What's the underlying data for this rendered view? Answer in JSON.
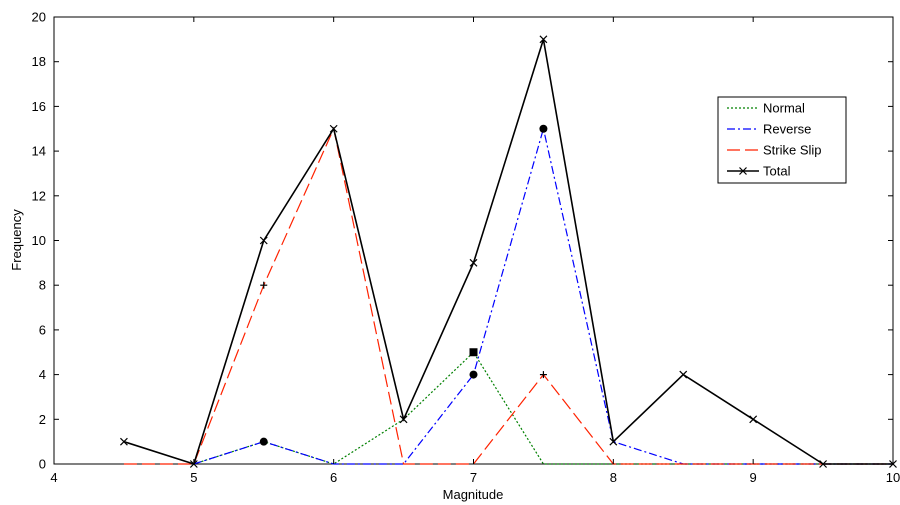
{
  "chart_data": {
    "type": "line",
    "title": "",
    "xlabel": "Magnitude",
    "ylabel": "Frequency",
    "xlim": [
      4,
      10
    ],
    "ylim": [
      0,
      20
    ],
    "xticks": [
      4,
      5,
      6,
      7,
      8,
      9,
      10
    ],
    "yticks": [
      0,
      2,
      4,
      6,
      8,
      10,
      12,
      14,
      16,
      18,
      20
    ],
    "grid": false,
    "legend_position": "upper right",
    "series": [
      {
        "name": "Normal",
        "color": "#008000",
        "line_style": "dotted",
        "x": [
          5,
          5.5,
          6,
          6.5,
          7,
          7.5,
          8,
          8.5,
          9,
          9.5,
          10
        ],
        "y": [
          0,
          1,
          0,
          2,
          5,
          0,
          0,
          0,
          0,
          0,
          0
        ],
        "markers": [
          {
            "x": 7,
            "y": 5,
            "shape": "square"
          }
        ]
      },
      {
        "name": "Reverse",
        "color": "#0000ff",
        "line_style": "dash-dot",
        "x": [
          5,
          5.5,
          6,
          6.5,
          7,
          7.5,
          8,
          8.5,
          9,
          9.5,
          10
        ],
        "y": [
          0,
          1,
          0,
          0,
          4,
          15,
          1,
          0,
          0,
          0,
          0
        ],
        "markers": [
          {
            "x": 5.5,
            "y": 1,
            "shape": "circle"
          },
          {
            "x": 7,
            "y": 4,
            "shape": "circle"
          },
          {
            "x": 7.5,
            "y": 15,
            "shape": "circle"
          }
        ]
      },
      {
        "name": "Strike Slip",
        "color": "#ff2200",
        "line_style": "dashed",
        "x": [
          4.5,
          5,
          5.5,
          6,
          6.5,
          7,
          7.5,
          8,
          8.5,
          9,
          9.5,
          10
        ],
        "y": [
          0,
          0,
          8,
          15,
          0,
          0,
          4,
          0,
          0,
          0,
          0,
          0
        ],
        "markers": [
          {
            "x": 5.5,
            "y": 8,
            "shape": "plus"
          },
          {
            "x": 7.5,
            "y": 4,
            "shape": "plus"
          }
        ]
      },
      {
        "name": "Total",
        "color": "#000000",
        "line_style": "solid",
        "marker": "x",
        "x": [
          4.5,
          5,
          5.5,
          6,
          6.5,
          7,
          7.5,
          8,
          8.5,
          9,
          9.5,
          10
        ],
        "y": [
          1,
          0,
          10,
          15,
          2,
          9,
          19,
          1,
          4,
          2,
          0,
          0
        ]
      }
    ]
  }
}
